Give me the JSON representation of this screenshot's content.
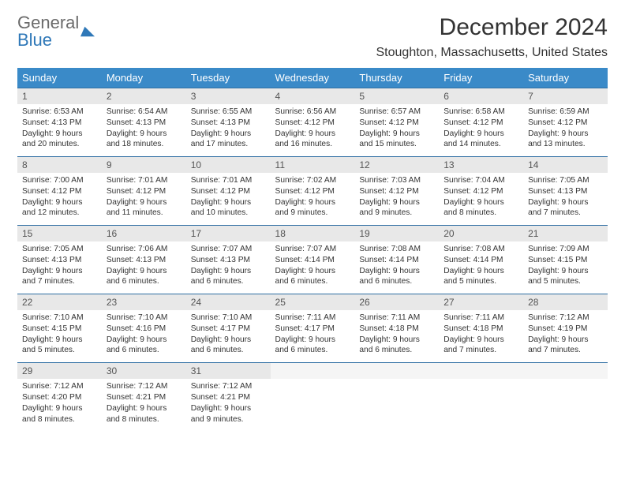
{
  "logo": {
    "word1": "General",
    "word2": "Blue",
    "text_color_gray": "#6b6b6b",
    "text_color_blue": "#2f78b8",
    "triangle_color": "#2f78b8"
  },
  "header": {
    "month_title": "December 2024",
    "location": "Stoughton, Massachusetts, United States"
  },
  "colors": {
    "header_bg": "#3a8ac8",
    "header_text": "#ffffff",
    "daynum_bg": "#e8e8e8",
    "empty_bg": "#f5f5f5",
    "row_border": "#2f6ea3",
    "body_text": "#333333"
  },
  "day_headers": [
    "Sunday",
    "Monday",
    "Tuesday",
    "Wednesday",
    "Thursday",
    "Friday",
    "Saturday"
  ],
  "weeks": [
    [
      {
        "n": "1",
        "sr": "6:53 AM",
        "ss": "4:13 PM",
        "dl": "9 hours and 20 minutes."
      },
      {
        "n": "2",
        "sr": "6:54 AM",
        "ss": "4:13 PM",
        "dl": "9 hours and 18 minutes."
      },
      {
        "n": "3",
        "sr": "6:55 AM",
        "ss": "4:13 PM",
        "dl": "9 hours and 17 minutes."
      },
      {
        "n": "4",
        "sr": "6:56 AM",
        "ss": "4:12 PM",
        "dl": "9 hours and 16 minutes."
      },
      {
        "n": "5",
        "sr": "6:57 AM",
        "ss": "4:12 PM",
        "dl": "9 hours and 15 minutes."
      },
      {
        "n": "6",
        "sr": "6:58 AM",
        "ss": "4:12 PM",
        "dl": "9 hours and 14 minutes."
      },
      {
        "n": "7",
        "sr": "6:59 AM",
        "ss": "4:12 PM",
        "dl": "9 hours and 13 minutes."
      }
    ],
    [
      {
        "n": "8",
        "sr": "7:00 AM",
        "ss": "4:12 PM",
        "dl": "9 hours and 12 minutes."
      },
      {
        "n": "9",
        "sr": "7:01 AM",
        "ss": "4:12 PM",
        "dl": "9 hours and 11 minutes."
      },
      {
        "n": "10",
        "sr": "7:01 AM",
        "ss": "4:12 PM",
        "dl": "9 hours and 10 minutes."
      },
      {
        "n": "11",
        "sr": "7:02 AM",
        "ss": "4:12 PM",
        "dl": "9 hours and 9 minutes."
      },
      {
        "n": "12",
        "sr": "7:03 AM",
        "ss": "4:12 PM",
        "dl": "9 hours and 9 minutes."
      },
      {
        "n": "13",
        "sr": "7:04 AM",
        "ss": "4:12 PM",
        "dl": "9 hours and 8 minutes."
      },
      {
        "n": "14",
        "sr": "7:05 AM",
        "ss": "4:13 PM",
        "dl": "9 hours and 7 minutes."
      }
    ],
    [
      {
        "n": "15",
        "sr": "7:05 AM",
        "ss": "4:13 PM",
        "dl": "9 hours and 7 minutes."
      },
      {
        "n": "16",
        "sr": "7:06 AM",
        "ss": "4:13 PM",
        "dl": "9 hours and 6 minutes."
      },
      {
        "n": "17",
        "sr": "7:07 AM",
        "ss": "4:13 PM",
        "dl": "9 hours and 6 minutes."
      },
      {
        "n": "18",
        "sr": "7:07 AM",
        "ss": "4:14 PM",
        "dl": "9 hours and 6 minutes."
      },
      {
        "n": "19",
        "sr": "7:08 AM",
        "ss": "4:14 PM",
        "dl": "9 hours and 6 minutes."
      },
      {
        "n": "20",
        "sr": "7:08 AM",
        "ss": "4:14 PM",
        "dl": "9 hours and 5 minutes."
      },
      {
        "n": "21",
        "sr": "7:09 AM",
        "ss": "4:15 PM",
        "dl": "9 hours and 5 minutes."
      }
    ],
    [
      {
        "n": "22",
        "sr": "7:10 AM",
        "ss": "4:15 PM",
        "dl": "9 hours and 5 minutes."
      },
      {
        "n": "23",
        "sr": "7:10 AM",
        "ss": "4:16 PM",
        "dl": "9 hours and 6 minutes."
      },
      {
        "n": "24",
        "sr": "7:10 AM",
        "ss": "4:17 PM",
        "dl": "9 hours and 6 minutes."
      },
      {
        "n": "25",
        "sr": "7:11 AM",
        "ss": "4:17 PM",
        "dl": "9 hours and 6 minutes."
      },
      {
        "n": "26",
        "sr": "7:11 AM",
        "ss": "4:18 PM",
        "dl": "9 hours and 6 minutes."
      },
      {
        "n": "27",
        "sr": "7:11 AM",
        "ss": "4:18 PM",
        "dl": "9 hours and 7 minutes."
      },
      {
        "n": "28",
        "sr": "7:12 AM",
        "ss": "4:19 PM",
        "dl": "9 hours and 7 minutes."
      }
    ],
    [
      {
        "n": "29",
        "sr": "7:12 AM",
        "ss": "4:20 PM",
        "dl": "9 hours and 8 minutes."
      },
      {
        "n": "30",
        "sr": "7:12 AM",
        "ss": "4:21 PM",
        "dl": "9 hours and 8 minutes."
      },
      {
        "n": "31",
        "sr": "7:12 AM",
        "ss": "4:21 PM",
        "dl": "9 hours and 9 minutes."
      },
      null,
      null,
      null,
      null
    ]
  ],
  "labels": {
    "sunrise": "Sunrise:",
    "sunset": "Sunset:",
    "daylight": "Daylight:"
  }
}
